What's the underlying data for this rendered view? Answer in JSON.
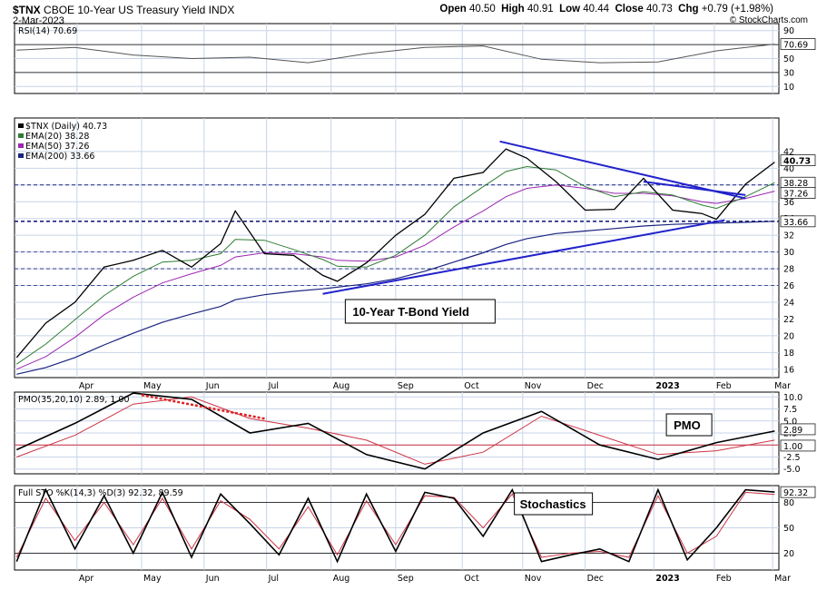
{
  "header": {
    "symbol": "$TNX",
    "name": "CBOE 10-Year US Treasury Yield INDX",
    "date": "2-Mar-2023",
    "open_label": "Open",
    "open": "40.50",
    "high_label": "High",
    "high": "40.91",
    "low_label": "Low",
    "low": "40.44",
    "close_label": "Close",
    "close": "40.73",
    "chg_label": "Chg",
    "chg": "+0.79 (+1.98%)",
    "credit": "© StockCharts.com"
  },
  "colors": {
    "price": "#000000",
    "ema20": "#2e7d32",
    "ema50": "#9c27b0",
    "ema200": "#1a237e",
    "trend": "#2222cc",
    "pmo_signal": "#cc3344",
    "pmo_down": "#dd2222",
    "grid": "#c8d4e8"
  },
  "chart_data": [
    {
      "panel": "rsi",
      "type": "line",
      "legend": "RSI(14) 70.69",
      "last_value": "70.69",
      "yticks": [
        10,
        30,
        50,
        70,
        90
      ],
      "ylim": [
        0,
        100
      ],
      "guide_lines": [
        30,
        70
      ],
      "months": [
        "Apr",
        "May",
        "Jun",
        "Jul",
        "Aug",
        "Sep",
        "Oct",
        "Nov",
        "Dec",
        "2023",
        "Feb",
        "Mar"
      ],
      "x": [
        "2022-03-03",
        "2022-03-31",
        "2022-04-28",
        "2022-05-26",
        "2022-06-23",
        "2022-07-21",
        "2022-08-18",
        "2022-09-15",
        "2022-10-13",
        "2022-11-10",
        "2022-12-08",
        "2023-01-05",
        "2023-02-02",
        "2023-03-02"
      ],
      "values": [
        62,
        66,
        55,
        50,
        52,
        44,
        57,
        66,
        68,
        49,
        44,
        45,
        61,
        70.69
      ]
    },
    {
      "panel": "price",
      "type": "line",
      "legend": [
        "$TNX (Daily) 40.73",
        "EMA(20) 38.28",
        "EMA(50) 37.26",
        "EMA(200) 33.66"
      ],
      "yticks": [
        16,
        18,
        20,
        22,
        24,
        26,
        28,
        30,
        32,
        34,
        36,
        38,
        40,
        42
      ],
      "ylim": [
        15,
        46
      ],
      "last_values": [
        "40.73",
        "38.28",
        "37.26",
        "33.66"
      ],
      "x": [
        "2022-03-03",
        "2022-03-17",
        "2022-03-31",
        "2022-04-14",
        "2022-04-28",
        "2022-05-12",
        "2022-05-26",
        "2022-06-09",
        "2022-06-16",
        "2022-06-30",
        "2022-07-14",
        "2022-07-28",
        "2022-08-04",
        "2022-08-18",
        "2022-09-01",
        "2022-09-15",
        "2022-09-29",
        "2022-10-13",
        "2022-10-24",
        "2022-11-03",
        "2022-11-17",
        "2022-12-01",
        "2022-12-15",
        "2022-12-29",
        "2023-01-12",
        "2023-01-26",
        "2023-02-02",
        "2023-02-16",
        "2023-03-02"
      ],
      "series": [
        {
          "name": "$TNX (Daily)",
          "values": [
            17.4,
            21.5,
            24.0,
            28.2,
            29.0,
            30.2,
            28.2,
            31.0,
            34.9,
            29.8,
            29.6,
            27.2,
            26.5,
            28.7,
            32.0,
            34.5,
            38.8,
            39.5,
            42.3,
            41.2,
            38.4,
            35.0,
            35.1,
            38.8,
            35.0,
            34.6,
            33.9,
            38.1,
            40.73
          ]
        },
        {
          "name": "EMA(20)",
          "values": [
            16.6,
            19.0,
            21.9,
            24.8,
            27.1,
            28.8,
            29.0,
            29.8,
            31.5,
            31.4,
            30.3,
            29.1,
            28.3,
            28.2,
            29.6,
            32.0,
            35.4,
            37.8,
            39.6,
            40.2,
            39.8,
            37.8,
            36.6,
            37.2,
            36.8,
            35.6,
            35.2,
            36.6,
            38.28
          ]
        },
        {
          "name": "EMA(50)",
          "values": [
            16.0,
            17.5,
            19.8,
            22.5,
            24.6,
            26.3,
            27.4,
            28.4,
            29.4,
            29.9,
            29.8,
            29.4,
            29.0,
            28.9,
            29.4,
            30.8,
            33.0,
            34.9,
            36.6,
            37.6,
            38.0,
            37.6,
            37.0,
            37.0,
            36.7,
            36.0,
            35.8,
            36.4,
            37.26
          ]
        },
        {
          "name": "EMA(200)",
          "values": [
            15.4,
            16.2,
            17.4,
            18.9,
            20.3,
            21.6,
            22.6,
            23.5,
            24.3,
            24.9,
            25.3,
            25.6,
            25.8,
            26.2,
            26.8,
            27.7,
            28.8,
            29.9,
            30.9,
            31.6,
            32.2,
            32.5,
            32.8,
            33.1,
            33.3,
            33.4,
            33.45,
            33.55,
            33.66
          ]
        }
      ],
      "trendlines": [
        {
          "x": [
            "2022-07-28",
            "2023-02-06"
          ],
          "y": [
            25.0,
            33.8
          ]
        },
        {
          "x": [
            "2022-10-21",
            "2023-02-16"
          ],
          "y": [
            43.2,
            36.4
          ]
        },
        {
          "x": [
            "2022-12-29",
            "2023-02-16"
          ],
          "y": [
            38.4,
            36.8
          ]
        }
      ],
      "annotation": "10-Year T-Bond Yield"
    },
    {
      "panel": "pmo",
      "type": "line",
      "legend": "PMO(35,20,10) 2.89, 1.00",
      "yticks": [
        "-5.0",
        "-2.5",
        "0.0",
        "2.5",
        "5.0",
        "7.5",
        "10.0"
      ],
      "ylim": [
        -6,
        11
      ],
      "last_values": [
        "2.89",
        "1.00"
      ],
      "x": [
        "2022-03-03",
        "2022-03-31",
        "2022-04-28",
        "2022-05-26",
        "2022-06-23",
        "2022-07-21",
        "2022-08-18",
        "2022-09-15",
        "2022-10-13",
        "2022-11-10",
        "2022-12-08",
        "2023-01-05",
        "2023-02-02",
        "2023-03-02"
      ],
      "series": [
        {
          "name": "PMO",
          "values": [
            -1.0,
            4.5,
            10.8,
            9.5,
            2.5,
            4.5,
            -2.0,
            -5.0,
            2.5,
            7.0,
            0.0,
            -3.0,
            0.5,
            2.89
          ]
        },
        {
          "name": "Signal",
          "values": [
            -2.5,
            2.0,
            8.5,
            10.0,
            5.5,
            3.5,
            1.0,
            -4.0,
            -1.5,
            6.0,
            2.0,
            -2.0,
            -1.2,
            1.0
          ]
        }
      ],
      "annotation": "PMO"
    },
    {
      "panel": "stochastics",
      "type": "line",
      "legend": "Full STO %K(14,3) %D(3) 92.32, 89.59",
      "yticks": [
        20,
        50,
        80
      ],
      "ylim": [
        0,
        100
      ],
      "last_values": [
        "92.32",
        "89.59"
      ],
      "x": [
        "2022-03-03",
        "2022-03-17",
        "2022-03-31",
        "2022-04-14",
        "2022-04-28",
        "2022-05-12",
        "2022-05-26",
        "2022-06-09",
        "2022-06-23",
        "2022-07-07",
        "2022-07-21",
        "2022-08-04",
        "2022-08-18",
        "2022-09-01",
        "2022-09-15",
        "2022-09-29",
        "2022-10-13",
        "2022-10-27",
        "2022-11-10",
        "2022-11-24",
        "2022-12-08",
        "2022-12-22",
        "2023-01-05",
        "2023-01-19",
        "2023-02-02",
        "2023-02-16",
        "2023-03-02"
      ],
      "series": [
        {
          "name": "%K",
          "values": [
            10,
            95,
            25,
            88,
            20,
            92,
            15,
            90,
            55,
            18,
            85,
            10,
            90,
            22,
            92,
            85,
            40,
            95,
            10,
            18,
            25,
            10,
            95,
            12,
            50,
            95,
            92.32
          ]
        },
        {
          "name": "%D",
          "values": [
            15,
            85,
            35,
            80,
            30,
            85,
            25,
            82,
            60,
            25,
            75,
            18,
            82,
            30,
            88,
            86,
            50,
            90,
            15,
            20,
            22,
            15,
            88,
            20,
            40,
            92,
            89.59
          ]
        }
      ],
      "annotation": "Stochastics"
    }
  ]
}
